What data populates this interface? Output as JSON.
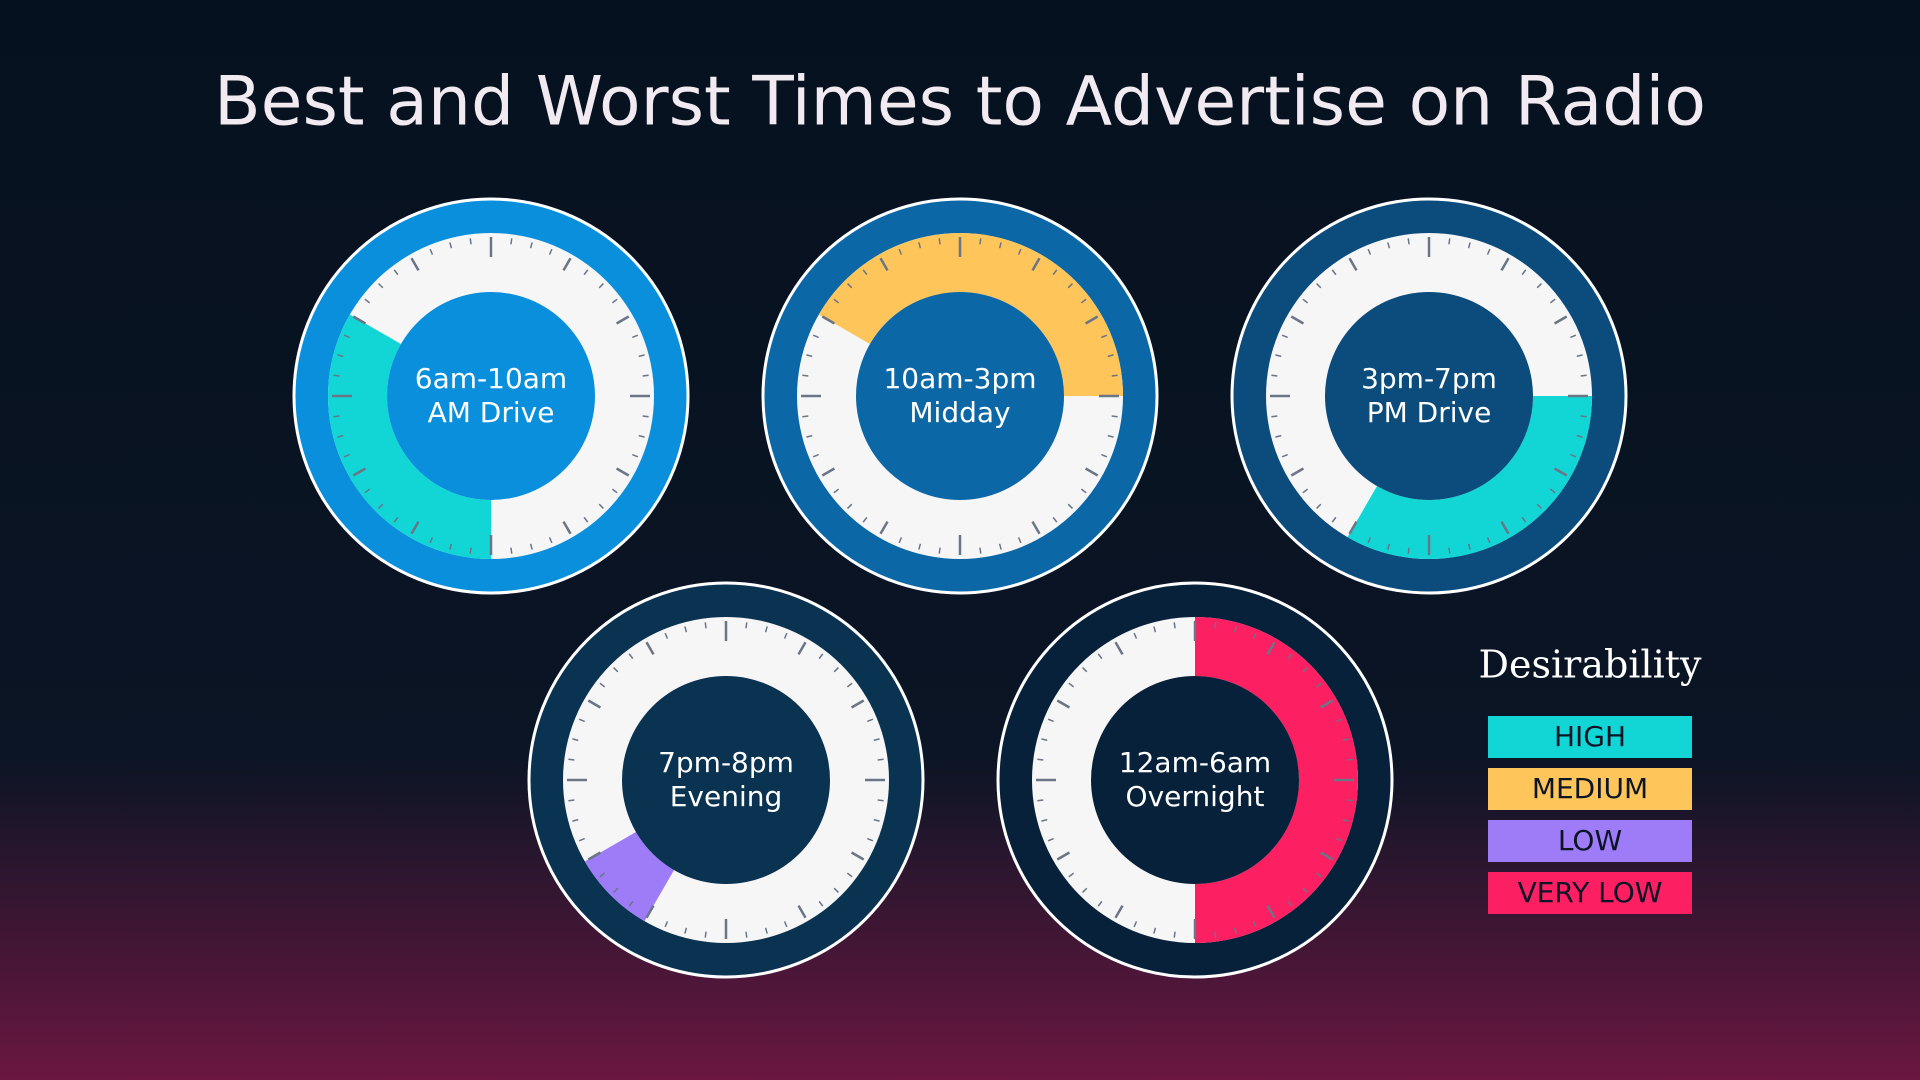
{
  "title": "Best and Worst Times to Advertise on Radio",
  "clocks": [
    {
      "time": "6am-10am",
      "name": "AM Drive",
      "arc": [
        6,
        10
      ],
      "color": "#12d6d6",
      "ring_color": "#0a8fdc"
    },
    {
      "time": "10am-3pm",
      "name": "Midday",
      "arc": [
        10,
        15
      ],
      "color": "#fec55a",
      "ring_color": "#0c67a6"
    },
    {
      "time": "3pm-7pm",
      "name": "PM Drive",
      "arc": [
        15,
        19
      ],
      "color": "#12d6d6",
      "ring_color": "#0b4c7c"
    },
    {
      "time": "7pm-8pm",
      "name": "Evening",
      "arc": [
        19,
        20
      ],
      "color": "#9e7cf8",
      "ring_color": "#0a3251"
    },
    {
      "time": "12am-6am",
      "name": "Overnight",
      "arc": [
        0,
        6
      ],
      "color": "#fc1f62",
      "ring_color": "#08213a"
    }
  ],
  "legend": {
    "title": "Desirability",
    "items": [
      {
        "label": "HIGH",
        "color": "#12d6d6"
      },
      {
        "label": "MEDIUM",
        "color": "#fec55a"
      },
      {
        "label": "LOW",
        "color": "#9e7cf8"
      },
      {
        "label": "VERY LOW",
        "color": "#fc1f62"
      }
    ]
  }
}
